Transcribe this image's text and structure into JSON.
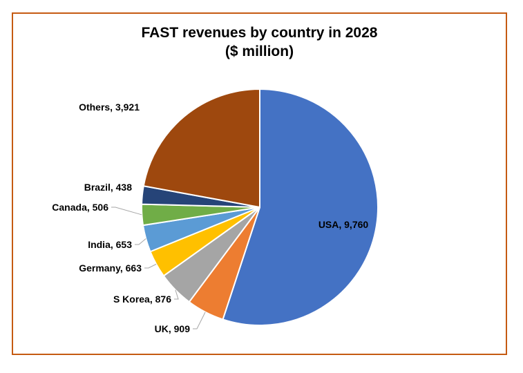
{
  "chart_data": {
    "type": "pie",
    "title": "FAST revenues by country in 2028",
    "subtitle": "($ million)",
    "categories": [
      "USA",
      "UK",
      "S Korea",
      "Germany",
      "India",
      "Canada",
      "Brazil",
      "Others"
    ],
    "values": [
      9760,
      909,
      876,
      663,
      653,
      506,
      438,
      3921
    ],
    "colors": [
      "#4472c4",
      "#ed7d31",
      "#a5a5a5",
      "#ffc000",
      "#5b9bd5",
      "#70ad47",
      "#264478",
      "#9e480e"
    ],
    "labels": [
      "USA, 9,760",
      "UK, 909",
      "S Korea, 876",
      "Germany, 663",
      "India, 653",
      "Canada, 506",
      "Brazil, 438",
      "Others, 3,921"
    ]
  },
  "frame_color": "#c55a11"
}
